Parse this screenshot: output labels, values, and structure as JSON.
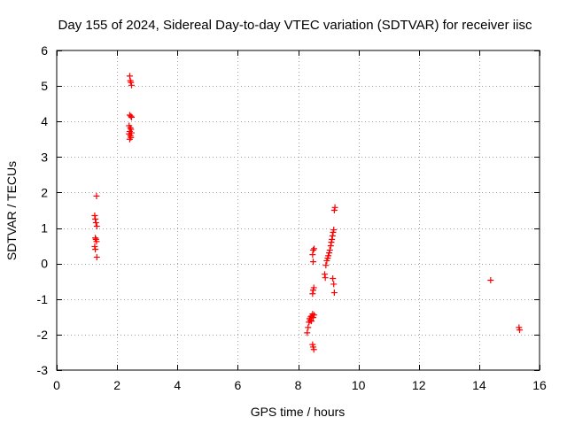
{
  "chart_data": {
    "type": "scatter",
    "title": "Day 155 of 2024, Sidereal Day-to-day VTEC variation (SDTVAR) for receiver iisc",
    "xlabel": "GPS time / hours",
    "ylabel": "SDTVAR / TECUs",
    "xlim": [
      0,
      16
    ],
    "ylim": [
      -3,
      6
    ],
    "xticks": [
      0,
      2,
      4,
      6,
      8,
      10,
      12,
      14,
      16
    ],
    "yticks": [
      -3,
      -2,
      -1,
      0,
      1,
      2,
      3,
      4,
      5,
      6
    ],
    "grid": true,
    "marker": "+",
    "color": "#ff0000",
    "points": [
      [
        1.32,
        1.9
      ],
      [
        1.26,
        1.35
      ],
      [
        1.28,
        1.25
      ],
      [
        1.3,
        1.15
      ],
      [
        1.33,
        1.05
      ],
      [
        1.28,
        0.72
      ],
      [
        1.3,
        0.68
      ],
      [
        1.32,
        0.62
      ],
      [
        1.26,
        0.48
      ],
      [
        1.28,
        0.4
      ],
      [
        1.33,
        0.18
      ],
      [
        2.42,
        5.28
      ],
      [
        2.44,
        5.15
      ],
      [
        2.46,
        5.1
      ],
      [
        2.48,
        5.02
      ],
      [
        2.42,
        4.18
      ],
      [
        2.46,
        4.15
      ],
      [
        2.48,
        4.12
      ],
      [
        2.4,
        3.88
      ],
      [
        2.44,
        3.82
      ],
      [
        2.46,
        3.78
      ],
      [
        2.42,
        3.72
      ],
      [
        2.48,
        3.68
      ],
      [
        2.4,
        3.65
      ],
      [
        2.44,
        3.6
      ],
      [
        2.46,
        3.55
      ],
      [
        2.42,
        3.5
      ],
      [
        8.3,
        -1.95
      ],
      [
        8.33,
        -1.8
      ],
      [
        8.36,
        -1.65
      ],
      [
        8.38,
        -1.55
      ],
      [
        8.42,
        -1.5
      ],
      [
        8.45,
        -1.48
      ],
      [
        8.48,
        -1.42
      ],
      [
        8.4,
        -1.6
      ],
      [
        8.44,
        -1.62
      ],
      [
        8.5,
        -1.52
      ],
      [
        8.53,
        -1.45
      ],
      [
        8.48,
        -2.28
      ],
      [
        8.5,
        -2.35
      ],
      [
        8.52,
        -2.42
      ],
      [
        8.48,
        -0.85
      ],
      [
        8.5,
        -0.75
      ],
      [
        8.52,
        -0.68
      ],
      [
        8.5,
        0.05
      ],
      [
        8.48,
        0.25
      ],
      [
        8.5,
        0.38
      ],
      [
        8.53,
        0.42
      ],
      [
        8.9,
        -0.4
      ],
      [
        8.88,
        -0.3
      ],
      [
        8.92,
        -0.05
      ],
      [
        8.95,
        0.08
      ],
      [
        8.98,
        0.15
      ],
      [
        9.0,
        0.22
      ],
      [
        9.03,
        0.3
      ],
      [
        9.05,
        0.38
      ],
      [
        9.08,
        0.5
      ],
      [
        9.1,
        0.6
      ],
      [
        9.12,
        0.68
      ],
      [
        9.14,
        0.78
      ],
      [
        9.16,
        0.88
      ],
      [
        9.18,
        0.95
      ],
      [
        9.2,
        1.5
      ],
      [
        9.22,
        1.58
      ],
      [
        9.15,
        -0.42
      ],
      [
        9.18,
        -0.58
      ],
      [
        9.2,
        -0.82
      ],
      [
        14.38,
        -0.47
      ],
      [
        15.32,
        -1.8
      ],
      [
        15.34,
        -1.87
      ]
    ]
  }
}
